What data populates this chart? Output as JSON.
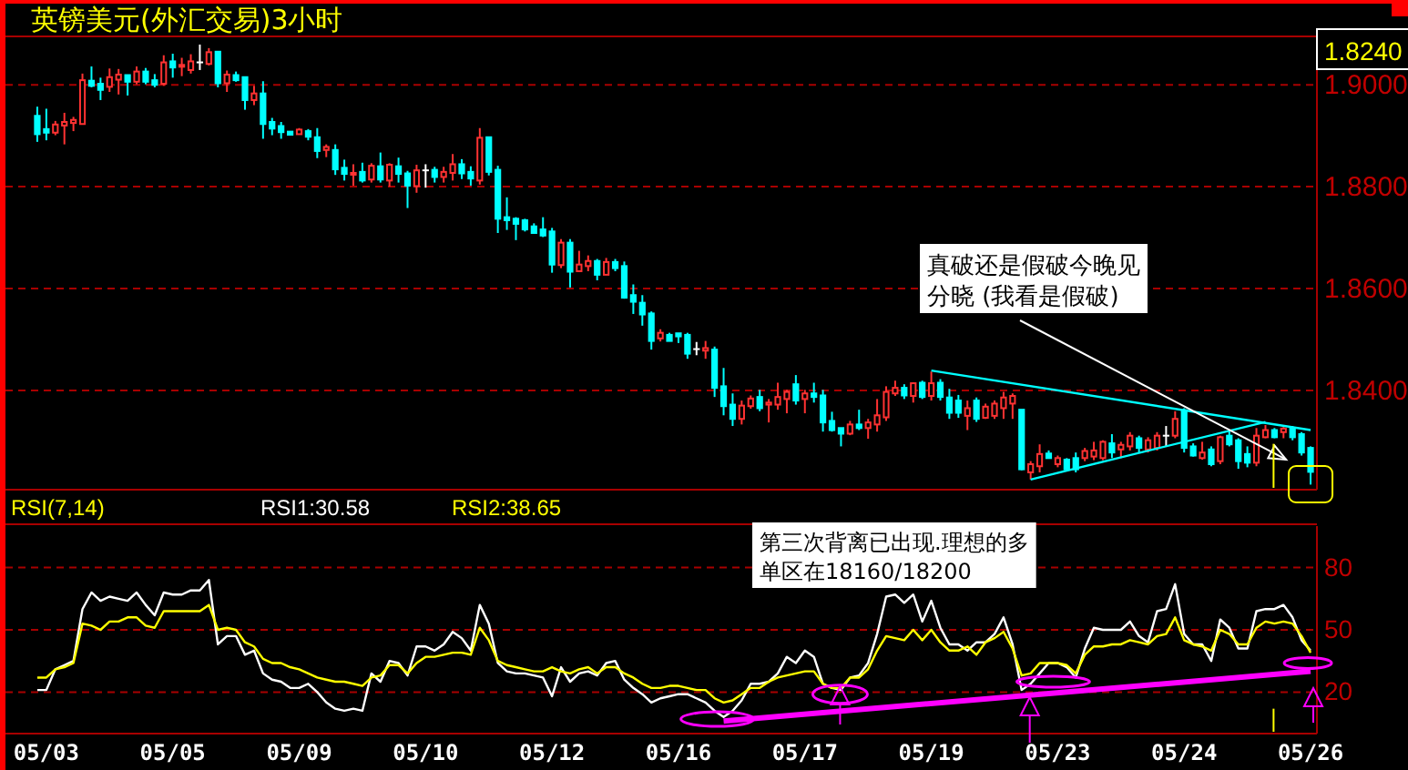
{
  "chart_data": [
    {
      "type": "candlestick",
      "title": "英镑美元(外汇交易)3小时",
      "categories": [
        null,
        null,
        null,
        null,
        null,
        null,
        null,
        null,
        null,
        null,
        null,
        null,
        null,
        null,
        null,
        null,
        null,
        null,
        null,
        null,
        null,
        null,
        null,
        null,
        null,
        null,
        null,
        null,
        null,
        null,
        null,
        null,
        null,
        null,
        null,
        null,
        null,
        null,
        null,
        null,
        null,
        null,
        null,
        null,
        null,
        null,
        null,
        null,
        null,
        null,
        null,
        null,
        null,
        null,
        null,
        null,
        null,
        null,
        null,
        null,
        null,
        null,
        null,
        null,
        null,
        null,
        null,
        null,
        null,
        null,
        null,
        null,
        null,
        null,
        null,
        null,
        null,
        null,
        null,
        null,
        null,
        null,
        null,
        null,
        null,
        null,
        null,
        null,
        null,
        null,
        null,
        null,
        null,
        null,
        null,
        null,
        null,
        null,
        null,
        null,
        null,
        null,
        null,
        null,
        null,
        null,
        null,
        null,
        null,
        null,
        null,
        null,
        null,
        null,
        null,
        null,
        null,
        null,
        null,
        null,
        null,
        null,
        null,
        null,
        null,
        null,
        null,
        null,
        null,
        null,
        null,
        null,
        null,
        null,
        null,
        null,
        null,
        null,
        null,
        null,
        null,
        null
      ],
      "ohlc": [
        [
          1.8939,
          1.8957,
          1.8888,
          1.8903
        ],
        [
          1.8913,
          1.8953,
          1.8891,
          1.8906
        ],
        [
          1.8906,
          1.8929,
          1.8901,
          1.8922
        ],
        [
          1.892,
          1.8945,
          1.8883,
          1.8927
        ],
        [
          1.8925,
          1.8937,
          1.8909,
          1.8931
        ],
        [
          1.8923,
          1.9022,
          1.8923,
          1.9009
        ],
        [
          1.9008,
          1.9036,
          1.8995,
          1.8998
        ],
        [
          1.9002,
          1.9014,
          1.897,
          1.899
        ],
        [
          1.8996,
          1.9032,
          1.8986,
          1.9015
        ],
        [
          1.901,
          1.9031,
          1.8981,
          1.902
        ],
        [
          1.9019,
          1.9019,
          1.8979,
          1.9006
        ],
        [
          1.9006,
          1.9036,
          1.9001,
          1.9026
        ],
        [
          1.9026,
          1.9033,
          1.9001,
          1.9006
        ],
        [
          1.9009,
          1.9021,
          1.8995,
          1.9
        ],
        [
          1.9002,
          1.9058,
          1.8998,
          1.9044
        ],
        [
          1.9046,
          1.9061,
          1.9014,
          1.9034
        ],
        [
          1.9036,
          1.9053,
          1.9017,
          1.9039
        ],
        [
          1.9029,
          1.906,
          1.9022,
          1.9046
        ],
        [
          1.9044,
          1.9079,
          1.9029,
          1.9044
        ],
        [
          1.9041,
          1.9072,
          1.9038,
          1.9064
        ],
        [
          1.9065,
          1.9065,
          1.8995,
          1.9003
        ],
        [
          1.9003,
          1.9028,
          1.8986,
          1.902
        ],
        [
          1.9019,
          1.9026,
          1.9006,
          1.9009
        ],
        [
          1.9015,
          1.9015,
          1.8951,
          1.897
        ],
        [
          1.897,
          1.8998,
          1.896,
          1.8983
        ],
        [
          1.8983,
          1.9007,
          1.8894,
          1.8923
        ],
        [
          1.8927,
          1.8935,
          1.8901,
          1.8914
        ],
        [
          1.8919,
          1.8927,
          1.8894,
          1.8907
        ],
        [
          1.8908,
          1.8908,
          1.8902,
          1.8902
        ],
        [
          1.8903,
          1.8915,
          1.8903,
          1.8912
        ],
        [
          1.8909,
          1.8913,
          1.8891,
          1.8898
        ],
        [
          1.8897,
          1.8915,
          1.8856,
          1.887
        ],
        [
          1.8872,
          1.8883,
          1.8858,
          1.8878
        ],
        [
          1.8872,
          1.8883,
          1.8823,
          1.8834
        ],
        [
          1.8837,
          1.8853,
          1.8812,
          1.8825
        ],
        [
          1.8825,
          1.8844,
          1.8802,
          1.8827
        ],
        [
          1.8829,
          1.8847,
          1.8808,
          1.8812
        ],
        [
          1.8814,
          1.8846,
          1.8808,
          1.8841
        ],
        [
          1.884,
          1.8867,
          1.8808,
          1.8814
        ],
        [
          1.8812,
          1.8846,
          1.88,
          1.8843
        ],
        [
          1.884,
          1.8857,
          1.8808,
          1.8825
        ],
        [
          1.8826,
          1.8831,
          1.8758,
          1.8802
        ],
        [
          1.8801,
          1.8843,
          1.8788,
          1.8832
        ],
        [
          1.8832,
          1.8844,
          1.8798,
          1.8832
        ],
        [
          1.8833,
          1.8839,
          1.8808,
          1.8819
        ],
        [
          1.8819,
          1.8839,
          1.8808,
          1.8829
        ],
        [
          1.8827,
          1.8864,
          1.8812,
          1.8844
        ],
        [
          1.8844,
          1.8854,
          1.8815,
          1.8826
        ],
        [
          1.8829,
          1.884,
          1.8802,
          1.8816
        ],
        [
          1.8812,
          1.8915,
          1.8804,
          1.8896
        ],
        [
          1.8897,
          1.8897,
          1.8822,
          1.8829
        ],
        [
          1.8833,
          1.8841,
          1.8709,
          1.8737
        ],
        [
          1.874,
          1.8779,
          1.8715,
          1.8734
        ],
        [
          1.8737,
          1.874,
          1.8695,
          1.8727
        ],
        [
          1.8734,
          1.8737,
          1.8712,
          1.8716
        ],
        [
          1.8722,
          1.8728,
          1.8709,
          1.8709
        ],
        [
          1.8716,
          1.874,
          1.8701,
          1.8704
        ],
        [
          1.8712,
          1.8719,
          1.8631,
          1.8647
        ],
        [
          1.8646,
          1.8697,
          1.864,
          1.869
        ],
        [
          1.869,
          1.8697,
          1.8602,
          1.8633
        ],
        [
          1.8634,
          1.8674,
          1.8634,
          1.8647
        ],
        [
          1.8644,
          1.8665,
          1.8634,
          1.8654
        ],
        [
          1.8654,
          1.8658,
          1.8616,
          1.8627
        ],
        [
          1.8627,
          1.866,
          1.8627,
          1.8652
        ],
        [
          1.8652,
          1.8658,
          1.8634,
          1.864
        ],
        [
          1.8644,
          1.8653,
          1.858,
          1.8582
        ],
        [
          1.8587,
          1.8608,
          1.855,
          1.8574
        ],
        [
          1.8572,
          1.8587,
          1.8527,
          1.8549
        ],
        [
          1.8551,
          1.8555,
          1.848,
          1.8497
        ],
        [
          1.8502,
          1.852,
          1.8496,
          1.8513
        ],
        [
          1.8509,
          1.8513,
          1.8497,
          1.8497
        ],
        [
          1.8512,
          1.8512,
          1.8493,
          1.8506
        ],
        [
          1.8509,
          1.8513,
          1.8462,
          1.8472
        ],
        [
          1.8481,
          1.8495,
          1.8469,
          1.8481
        ],
        [
          1.8478,
          1.8497,
          1.8462,
          1.8483
        ],
        [
          1.848,
          1.8486,
          1.8387,
          1.8405
        ],
        [
          1.8408,
          1.8444,
          1.8351,
          1.8369
        ],
        [
          1.8372,
          1.8394,
          1.833,
          1.8344
        ],
        [
          1.8344,
          1.838,
          1.8333,
          1.837
        ],
        [
          1.8369,
          1.839,
          1.8364,
          1.8384
        ],
        [
          1.8387,
          1.8401,
          1.8359,
          1.8365
        ],
        [
          1.8372,
          1.8383,
          1.8337,
          1.8376
        ],
        [
          1.8372,
          1.8415,
          1.8362,
          1.8387
        ],
        [
          1.8383,
          1.8401,
          1.8355,
          1.8397
        ],
        [
          1.8412,
          1.843,
          1.8372,
          1.838
        ],
        [
          1.8383,
          1.8401,
          1.8355,
          1.8394
        ],
        [
          1.8394,
          1.8415,
          1.8376,
          1.8387
        ],
        [
          1.839,
          1.8401,
          1.8319,
          1.8337
        ],
        [
          1.834,
          1.8358,
          1.8319,
          1.8322
        ],
        [
          1.8326,
          1.8326,
          1.829,
          1.8315
        ],
        [
          1.8315,
          1.834,
          1.8312,
          1.8333
        ],
        [
          1.8333,
          1.8362,
          1.8322,
          1.8326
        ],
        [
          1.8326,
          1.8344,
          1.8305,
          1.8337
        ],
        [
          1.8333,
          1.8383,
          1.8319,
          1.8351
        ],
        [
          1.8347,
          1.8408,
          1.834,
          1.8397
        ],
        [
          1.8394,
          1.8419,
          1.8389,
          1.8405
        ],
        [
          1.8405,
          1.8412,
          1.8383,
          1.839
        ],
        [
          1.8389,
          1.8416,
          1.8376,
          1.8414
        ],
        [
          1.8415,
          1.8419,
          1.8383,
          1.8387
        ],
        [
          1.8389,
          1.8437,
          1.838,
          1.8414
        ],
        [
          1.8415,
          1.8422,
          1.838,
          1.8387
        ],
        [
          1.8386,
          1.8403,
          1.8344,
          1.8356
        ],
        [
          1.838,
          1.8391,
          1.8346,
          1.8356
        ],
        [
          1.835,
          1.838,
          1.8322,
          1.8365
        ],
        [
          1.838,
          1.8386,
          1.8338,
          1.8344
        ],
        [
          1.8346,
          1.8374,
          1.8344,
          1.8368
        ],
        [
          1.835,
          1.838,
          1.8344,
          1.8374
        ],
        [
          1.8365,
          1.8397,
          1.8344,
          1.8386
        ],
        [
          1.8374,
          1.8394,
          1.8344,
          1.8389
        ],
        [
          1.8362,
          1.8362,
          1.8243,
          1.8245
        ],
        [
          1.8239,
          1.8261,
          1.8225,
          1.8255
        ],
        [
          1.8251,
          1.8294,
          1.8239,
          1.8275
        ],
        [
          1.8276,
          1.8282,
          1.8267,
          1.8267
        ],
        [
          1.8255,
          1.8272,
          1.8249,
          1.8267
        ],
        [
          1.8264,
          1.8267,
          1.8243,
          1.8245
        ],
        [
          1.8267,
          1.8278,
          1.8239,
          1.8245
        ],
        [
          1.8267,
          1.8287,
          1.8261,
          1.8281
        ],
        [
          1.827,
          1.8299,
          1.8263,
          1.8282
        ],
        [
          1.8267,
          1.8302,
          1.8263,
          1.8299
        ],
        [
          1.8296,
          1.8314,
          1.8267,
          1.8278
        ],
        [
          1.8284,
          1.8299,
          1.8267,
          1.8293
        ],
        [
          1.829,
          1.8318,
          1.8282,
          1.8311
        ],
        [
          1.8306,
          1.8311,
          1.8278,
          1.8287
        ],
        [
          1.8284,
          1.8308,
          1.8278,
          1.8302
        ],
        [
          1.8287,
          1.8318,
          1.8282,
          1.8311
        ],
        [
          1.8311,
          1.833,
          1.829,
          1.8311
        ],
        [
          1.8311,
          1.8359,
          1.8306,
          1.8344
        ],
        [
          1.8361,
          1.8365,
          1.8278,
          1.8287
        ],
        [
          1.829,
          1.8296,
          1.827,
          1.8272
        ],
        [
          1.8267,
          1.8299,
          1.8264,
          1.8278
        ],
        [
          1.8284,
          1.829,
          1.8251,
          1.8255
        ],
        [
          1.8261,
          1.8311,
          1.8255,
          1.8308
        ],
        [
          1.8311,
          1.832,
          1.829,
          1.8294
        ],
        [
          1.8302,
          1.8306,
          1.8246,
          1.8261
        ],
        [
          1.8275,
          1.829,
          1.8249,
          1.8258
        ],
        [
          1.8258,
          1.8326,
          1.8251,
          1.8311
        ],
        [
          1.8308,
          1.8332,
          1.8306,
          1.8322
        ],
        [
          1.8322,
          1.8326,
          1.8306,
          1.8308
        ],
        [
          1.8318,
          1.8328,
          1.8306,
          1.8325
        ],
        [
          1.8326,
          1.833,
          1.8302,
          1.8308
        ],
        [
          1.8314,
          1.8318,
          1.8272,
          1.8278
        ],
        [
          1.8287,
          1.829,
          1.8215,
          1.824
        ]
      ],
      "series": [
        {
          "type": "line",
          "color": "#00ffff",
          "values": [
            null,
            null,
            null,
            null,
            null,
            null,
            null,
            null,
            null,
            null,
            null,
            null,
            null,
            null,
            null,
            null,
            null,
            null,
            null,
            null,
            null,
            null,
            null,
            null,
            null,
            null,
            null,
            null,
            null,
            null,
            null,
            null,
            null,
            null,
            null,
            null,
            null,
            null,
            null,
            null,
            null,
            null,
            null,
            null,
            null,
            null,
            null,
            null,
            null,
            null,
            null,
            null,
            null,
            null,
            null,
            null,
            null,
            null,
            null,
            null,
            null,
            null,
            null,
            null,
            null,
            null,
            null,
            null,
            null,
            null,
            null,
            null,
            null,
            null,
            null,
            null,
            null,
            null,
            null,
            null,
            null,
            null,
            null,
            null,
            null,
            null,
            null,
            null,
            null,
            null,
            null,
            null,
            null,
            null,
            null,
            null,
            null,
            null,
            null,
            1.8439,
            null,
            null,
            null,
            null,
            null,
            null,
            null,
            null,
            null,
            null,
            null,
            null,
            null,
            null,
            null,
            null,
            null,
            null,
            null,
            null,
            null,
            null,
            null,
            null,
            null,
            null,
            null,
            null,
            null,
            null,
            null,
            null,
            null,
            null,
            null,
            null,
            null,
            null,
            null,
            null,
            null,
            1.8322
          ]
        },
        {
          "type": "line",
          "color": "#00ffff",
          "values": [
            null,
            null,
            null,
            null,
            null,
            null,
            null,
            null,
            null,
            null,
            null,
            null,
            null,
            null,
            null,
            null,
            null,
            null,
            null,
            null,
            null,
            null,
            null,
            null,
            null,
            null,
            null,
            null,
            null,
            null,
            null,
            null,
            null,
            null,
            null,
            null,
            null,
            null,
            null,
            null,
            null,
            null,
            null,
            null,
            null,
            null,
            null,
            null,
            null,
            null,
            null,
            null,
            null,
            null,
            null,
            null,
            null,
            null,
            null,
            null,
            null,
            null,
            null,
            null,
            null,
            null,
            null,
            null,
            null,
            null,
            null,
            null,
            null,
            null,
            null,
            null,
            null,
            null,
            null,
            null,
            null,
            null,
            null,
            null,
            null,
            null,
            null,
            null,
            null,
            null,
            null,
            null,
            null,
            null,
            null,
            null,
            null,
            null,
            null,
            null,
            null,
            null,
            null,
            null,
            null,
            null,
            null,
            null,
            null,
            null,
            1.8225,
            null,
            null,
            null,
            null,
            null,
            null,
            null,
            null,
            null,
            null,
            null,
            null,
            null,
            null,
            null,
            null,
            null,
            null,
            null,
            null,
            null,
            null,
            null,
            null,
            null,
            1.8338,
            null,
            null,
            null,
            null,
            null
          ]
        }
      ],
      "ylim": [
        1.8205,
        1.9095
      ],
      "yticks": [
        {
          "value": 1.84,
          "label": "1.8400"
        },
        {
          "value": 1.86,
          "label": "1.8600"
        },
        {
          "value": 1.88,
          "label": "1.8800"
        },
        {
          "value": 1.9,
          "label": "1.9000"
        }
      ],
      "grid": "y",
      "tick_labels": "y",
      "annotations": [
        "真破还是假破今晚见分晓 (我看是假破)",
        "1.8240"
      ]
    },
    {
      "type": "line",
      "title": "RSI(7,14)",
      "series": [
        {
          "name": "RSI1:30.58",
          "color": "#ffffff",
          "values": [
            21,
            21,
            31,
            33,
            35,
            60,
            68,
            64,
            66,
            65,
            64,
            68,
            62,
            57,
            68,
            67,
            67,
            69,
            69,
            74,
            43,
            47,
            47,
            38,
            40,
            29,
            26,
            25,
            22,
            22,
            24,
            20,
            15,
            12,
            11,
            12,
            11,
            29,
            25,
            35,
            34,
            28,
            42,
            42,
            40,
            43,
            49,
            46,
            40,
            62,
            53,
            34,
            30,
            29,
            29,
            28,
            27,
            18,
            32,
            25,
            29,
            30,
            28,
            34,
            35,
            26,
            22,
            19,
            15,
            17,
            18,
            19,
            19,
            17,
            15,
            11,
            8,
            11,
            16,
            24,
            24,
            25,
            29,
            37,
            34,
            40,
            37,
            24,
            22,
            21,
            27,
            28,
            34,
            48,
            66,
            67,
            63,
            67,
            54,
            64,
            51,
            43,
            43,
            40,
            44,
            44,
            48,
            56,
            43,
            21,
            24,
            29,
            34,
            34,
            32,
            27,
            41,
            51,
            50,
            50,
            50,
            54,
            47,
            44,
            59,
            60,
            72,
            48,
            43,
            43,
            35,
            55,
            51,
            41,
            41,
            59,
            60,
            60,
            62,
            56,
            45,
            40
          ]
        },
        {
          "name": "RSI2:38.65",
          "color": "#ffff00",
          "values": [
            27,
            27,
            31,
            32,
            34,
            53,
            52,
            50,
            54,
            54,
            56,
            56,
            52,
            51,
            59,
            59,
            59,
            59,
            59,
            62,
            50,
            51,
            50,
            44,
            42,
            36,
            34,
            34,
            32,
            31,
            29,
            27,
            26,
            25,
            25,
            24,
            23,
            27,
            28,
            33,
            33,
            29,
            34,
            37,
            37,
            38,
            39,
            39,
            38,
            51,
            45,
            35,
            33,
            32,
            31,
            30,
            30,
            32,
            30,
            29,
            31,
            32,
            29,
            32,
            32,
            29,
            27,
            24,
            22,
            22,
            23,
            23,
            22,
            21,
            21,
            17,
            15,
            16,
            19,
            22,
            22,
            25,
            27,
            28,
            29,
            30,
            30,
            24,
            22,
            22,
            27,
            27,
            31,
            40,
            47,
            46,
            45,
            50,
            45,
            50,
            44,
            40,
            40,
            42,
            38,
            44,
            46,
            49,
            41,
            28,
            29,
            34,
            34,
            34,
            33,
            29,
            38,
            42,
            42,
            43,
            43,
            45,
            44,
            43,
            47,
            48,
            56,
            45,
            43,
            42,
            40,
            50,
            48,
            43,
            43,
            51,
            54,
            53,
            54,
            53,
            47,
            39
          ]
        },
        {
          "type": "line",
          "color": "#ff00ff",
          "values": [
            null,
            null,
            null,
            null,
            null,
            null,
            null,
            null,
            null,
            null,
            null,
            null,
            null,
            null,
            null,
            null,
            null,
            null,
            null,
            null,
            null,
            null,
            null,
            null,
            null,
            null,
            null,
            null,
            null,
            null,
            null,
            null,
            null,
            null,
            null,
            null,
            null,
            null,
            null,
            null,
            null,
            null,
            null,
            null,
            null,
            null,
            null,
            null,
            null,
            null,
            null,
            null,
            null,
            null,
            null,
            null,
            null,
            null,
            null,
            null,
            null,
            null,
            null,
            null,
            null,
            null,
            null,
            null,
            null,
            null,
            null,
            null,
            null,
            null,
            null,
            null,
            6,
            null,
            null,
            null,
            null,
            null,
            null,
            null,
            null,
            null,
            null,
            null,
            null,
            null,
            null,
            null,
            null,
            null,
            null,
            null,
            null,
            null,
            null,
            null,
            null,
            null,
            null,
            null,
            null,
            null,
            null,
            null,
            null,
            null,
            null,
            null,
            null,
            null,
            null,
            null,
            null,
            null,
            null,
            null,
            null,
            null,
            null,
            null,
            null,
            null,
            null,
            null,
            null,
            null,
            null,
            null,
            null,
            null,
            null,
            null,
            null,
            null,
            null,
            null,
            null,
            30
          ]
        }
      ],
      "categories": [
        null,
        "05/03",
        null,
        null,
        null,
        null,
        null,
        null,
        null,
        null,
        null,
        null,
        null,
        null,
        null,
        "05/05",
        null,
        null,
        null,
        null,
        null,
        null,
        null,
        null,
        null,
        null,
        null,
        null,
        null,
        "05/09",
        null,
        null,
        null,
        null,
        null,
        null,
        null,
        null,
        null,
        null,
        null,
        null,
        null,
        "05/10",
        null,
        null,
        null,
        null,
        null,
        null,
        null,
        null,
        null,
        null,
        null,
        null,
        null,
        "05/12",
        null,
        null,
        null,
        null,
        null,
        null,
        null,
        null,
        null,
        null,
        null,
        null,
        null,
        "05/16",
        null,
        null,
        null,
        null,
        null,
        null,
        null,
        null,
        null,
        null,
        null,
        null,
        null,
        "05/17",
        null,
        null,
        null,
        null,
        null,
        null,
        null,
        null,
        null,
        null,
        null,
        null,
        null,
        "05/19",
        null,
        null,
        null,
        null,
        null,
        null,
        null,
        null,
        null,
        null,
        null,
        null,
        null,
        "05/23",
        null,
        null,
        null,
        null,
        null,
        null,
        null,
        null,
        null,
        null,
        null,
        null,
        null,
        "05/24",
        null,
        null,
        null,
        null,
        null,
        null,
        null,
        null,
        null,
        null,
        null,
        null,
        null,
        "05/26"
      ],
      "ylim": [
        0,
        100
      ],
      "yticks": [
        20,
        50,
        80
      ],
      "grid": "y",
      "annotations": [
        "第三次背离已出现.理想的多单区在18160/18200"
      ]
    }
  ]
}
